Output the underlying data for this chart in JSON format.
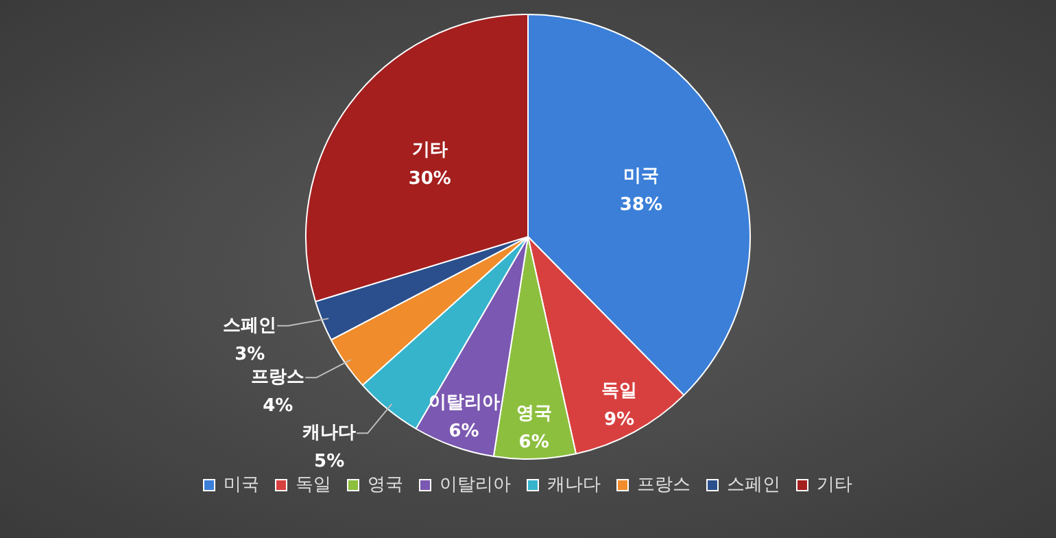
{
  "chart_data": {
    "type": "pie",
    "categories": [
      "미국",
      "독일",
      "영국",
      "이탈리아",
      "캐나다",
      "프랑스",
      "스페인",
      "기타"
    ],
    "values": [
      38,
      9,
      6,
      6,
      5,
      4,
      3,
      30
    ],
    "value_labels": [
      "38%",
      "9%",
      "6%",
      "6%",
      "5%",
      "4%",
      "3%",
      "30%"
    ],
    "colors": [
      "#3b7fd9",
      "#d8403f",
      "#8dbf3f",
      "#7b58b1",
      "#36b4cc",
      "#f08c2b",
      "#2b4f8d",
      "#a51f1f"
    ],
    "data_labels": true,
    "legend": "bottom"
  }
}
